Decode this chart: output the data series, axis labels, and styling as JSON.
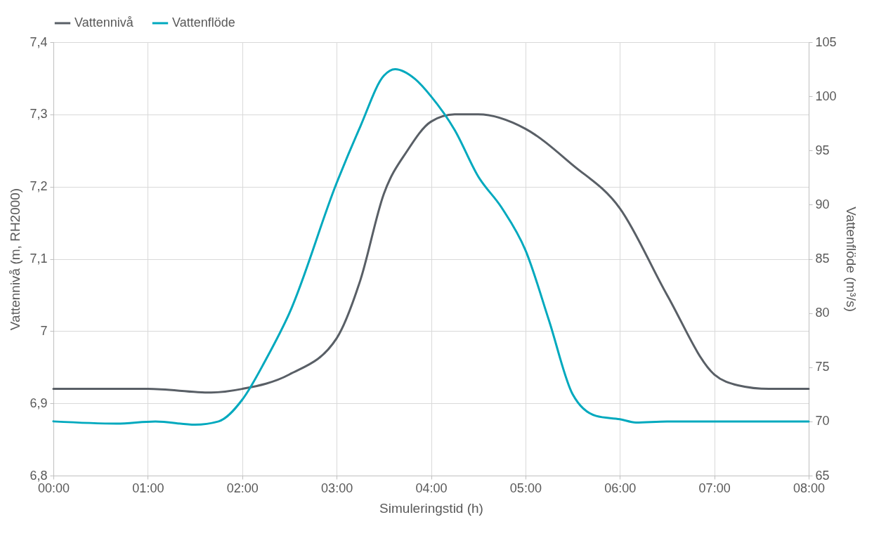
{
  "chart_data": {
    "type": "line",
    "xlabel": "Simuleringstid (h)",
    "ylabel": "Vattennivå (m, RH2000)",
    "y2label": "Vattenflöde (m³/s)",
    "xlim": [
      0,
      8
    ],
    "xticks": [
      {
        "value": 0,
        "label": "00:00"
      },
      {
        "value": 1,
        "label": "01:00"
      },
      {
        "value": 2,
        "label": "02:00"
      },
      {
        "value": 3,
        "label": "03:00"
      },
      {
        "value": 4,
        "label": "04:00"
      },
      {
        "value": 5,
        "label": "05:00"
      },
      {
        "value": 6,
        "label": "06:00"
      },
      {
        "value": 7,
        "label": "07:00"
      },
      {
        "value": 8,
        "label": "08:00"
      }
    ],
    "ylim": [
      6.8,
      7.4
    ],
    "yticks": [
      {
        "value": 6.8,
        "label": "6,8"
      },
      {
        "value": 6.9,
        "label": "6,9"
      },
      7,
      {
        "value": 7.1,
        "label": "7,1"
      },
      {
        "value": 7.2,
        "label": "7,2"
      },
      {
        "value": 7.3,
        "label": "7,3"
      },
      {
        "value": 7.4,
        "label": "7,4"
      }
    ],
    "y2lim": [
      65,
      105
    ],
    "y2ticks": [
      65,
      70,
      75,
      80,
      85,
      90,
      95,
      100,
      105
    ],
    "grid": true,
    "legend": "top",
    "line_style": "solid",
    "marker": "none",
    "series": [
      {
        "name": "Vattennivå",
        "color": "#595f66",
        "x": [
          0,
          1,
          1.67,
          2,
          2.5,
          3,
          3.25,
          3.5,
          3.75,
          4,
          4.25,
          4.5,
          5,
          5.5,
          6,
          6.5,
          7,
          7.25,
          7.58,
          8
        ],
        "values": [
          6.92,
          6.92,
          6.915,
          6.92,
          6.94,
          6.99,
          7.07,
          7.19,
          7.25,
          7.29,
          7.3,
          7.3,
          7.28,
          7.23,
          7.17,
          7.05,
          6.94,
          6.925,
          6.92,
          6.92
        ]
      },
      {
        "name": "Vattenflöde",
        "color": "#00a9be",
        "axis": "y2",
        "x": [
          0,
          0.67,
          1.08,
          1.5,
          1.75,
          2,
          2.25,
          2.5,
          3,
          3.25,
          3.5,
          3.62,
          3.83,
          4,
          4.25,
          4.5,
          4.75,
          5,
          5.25,
          5.5,
          5.75,
          6,
          6.17,
          6.5,
          8
        ],
        "values": [
          70,
          69.8,
          70,
          69.7,
          70,
          72,
          75.7,
          80,
          92,
          97.2,
          101.9,
          102.5,
          101.6,
          100,
          96.9,
          92.6,
          89.7,
          85.8,
          79.3,
          72.5,
          70.5,
          70.2,
          69.9,
          70,
          70
        ]
      }
    ]
  }
}
